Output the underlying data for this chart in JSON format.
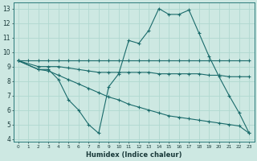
{
  "xlabel": "Humidex (Indice chaleur)",
  "bg_color": "#cde8e2",
  "line_color": "#1a6b6b",
  "grid_color": "#b0d8d0",
  "xlim": [
    -0.5,
    23.5
  ],
  "ylim": [
    3.8,
    13.4
  ],
  "yticks": [
    4,
    5,
    6,
    7,
    8,
    9,
    10,
    11,
    12,
    13
  ],
  "xticks": [
    0,
    1,
    2,
    3,
    4,
    5,
    6,
    7,
    8,
    9,
    10,
    11,
    12,
    13,
    14,
    15,
    16,
    17,
    18,
    19,
    20,
    21,
    22,
    23
  ],
  "lines": [
    {
      "x": [
        0,
        1,
        2,
        3,
        4,
        5,
        6,
        7,
        8,
        9,
        10,
        11,
        12,
        13,
        14,
        15,
        16,
        17,
        18,
        19,
        20,
        21,
        22,
        23
      ],
      "y": [
        9.4,
        9.4,
        9.4,
        9.4,
        9.4,
        9.4,
        9.4,
        9.4,
        9.4,
        9.4,
        9.4,
        9.4,
        9.4,
        9.4,
        9.4,
        9.4,
        9.4,
        9.4,
        9.4,
        9.4,
        9.4,
        9.4,
        9.4,
        9.4
      ]
    },
    {
      "x": [
        0,
        2,
        3,
        4,
        5,
        6,
        7,
        8,
        9,
        10,
        11,
        12,
        13,
        14,
        15,
        16,
        17,
        18,
        19,
        20,
        21,
        22,
        23
      ],
      "y": [
        9.4,
        8.8,
        8.8,
        8.1,
        6.7,
        6.0,
        5.0,
        4.4,
        7.6,
        8.5,
        10.8,
        10.6,
        11.5,
        13.0,
        12.6,
        12.6,
        12.9,
        11.3,
        9.7,
        8.3,
        7.0,
        5.8,
        4.4
      ]
    },
    {
      "x": [
        0,
        2,
        3,
        4,
        5,
        6,
        7,
        8,
        9,
        10,
        11,
        12,
        13,
        14,
        15,
        16,
        17,
        18,
        19,
        20,
        21,
        22,
        23
      ],
      "y": [
        9.4,
        9.0,
        9.0,
        9.0,
        8.9,
        8.8,
        8.7,
        8.6,
        8.6,
        8.6,
        8.6,
        8.6,
        8.6,
        8.5,
        8.5,
        8.5,
        8.5,
        8.5,
        8.4,
        8.4,
        8.3,
        8.3,
        8.3
      ]
    },
    {
      "x": [
        0,
        2,
        3,
        4,
        5,
        6,
        7,
        8,
        9,
        10,
        11,
        12,
        13,
        14,
        15,
        16,
        17,
        18,
        19,
        20,
        21,
        22,
        23
      ],
      "y": [
        9.4,
        8.8,
        8.7,
        8.4,
        8.1,
        7.8,
        7.5,
        7.2,
        6.9,
        6.7,
        6.4,
        6.2,
        6.0,
        5.8,
        5.6,
        5.5,
        5.4,
        5.3,
        5.2,
        5.1,
        5.0,
        4.9,
        4.4
      ]
    }
  ]
}
